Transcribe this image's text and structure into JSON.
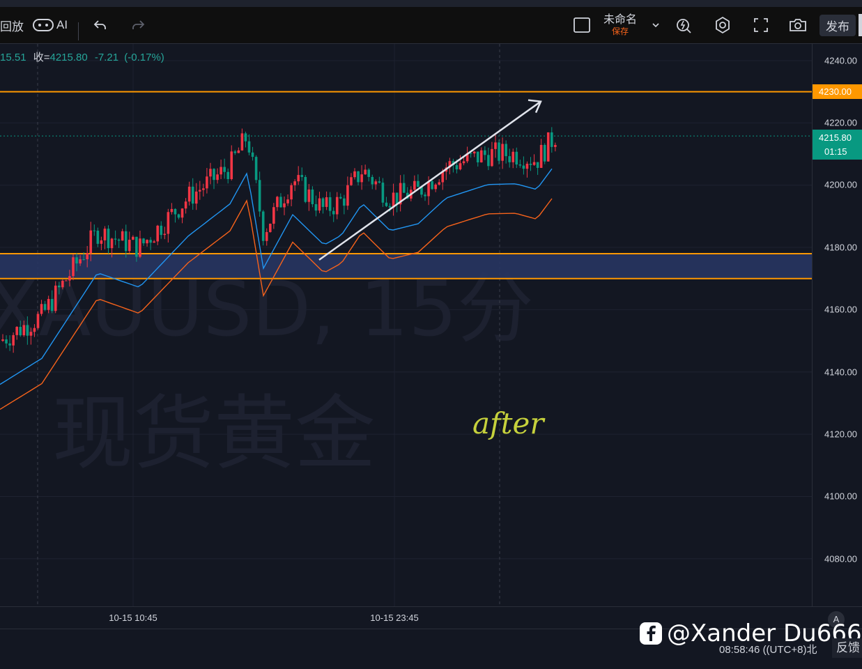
{
  "toolbar": {
    "replay_label": "回放",
    "ai_label": "AI",
    "layout_name": "未命名",
    "save_status": "保存",
    "publish_label": "发布"
  },
  "legend": {
    "prefix": "15.51",
    "close_key": "收=",
    "close_value": "4215.80",
    "change": "-7.21",
    "change_pct": "(-0.17%)"
  },
  "watermark": {
    "symbol_line": "XAUUSD, 15分",
    "name_line": "现货黄金"
  },
  "annotation_text": "after",
  "price_scale": {
    "labels": [
      "4240.00",
      "4220.00",
      "4200.00",
      "4180.00",
      "4160.00",
      "4140.00",
      "4120.00",
      "4100.00",
      "4080.00"
    ],
    "level_tag": "4230.00",
    "current_price": "4215.80",
    "countdown": "01:15"
  },
  "time_axis": {
    "labels": [
      "10-15 10:45",
      "10-15 23:45"
    ]
  },
  "footer": {
    "clock": "08:58:46",
    "timezone": "((UTC+8)北",
    "feedback_label": "反馈",
    "credit": "@Xander Du666"
  },
  "colors": {
    "up": "#f23645",
    "down": "#089981",
    "level_line": "#ff9800",
    "zone_fill": "#283562",
    "ma_fast": "#2196f3",
    "ma_slow": "#f7631b",
    "annotation": "#c6d13c",
    "current_tag": "#089981"
  },
  "chart_data": {
    "type": "candlestick",
    "symbol": "XAUUSD",
    "interval": "15分",
    "ylim": [
      4070,
      4244
    ],
    "horizontal_levels": [
      4230,
      4178,
      4170
    ],
    "zone": [
      4170,
      4178
    ],
    "arrow": {
      "from": [
        4176,
        4230
      ],
      "direction": "up"
    }
  }
}
